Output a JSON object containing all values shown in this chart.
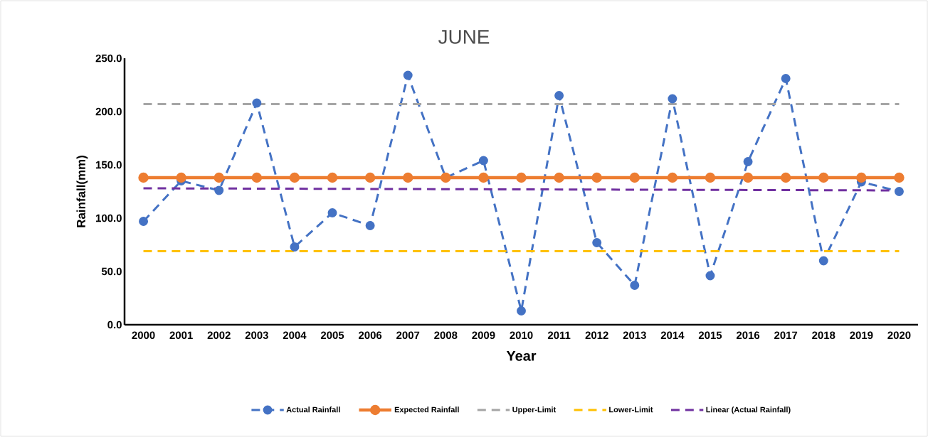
{
  "chart_data": {
    "type": "line",
    "title": "JUNE",
    "xlabel": "Year",
    "ylabel": "Rainfall(mm)",
    "x": [
      2000,
      2001,
      2002,
      2003,
      2004,
      2005,
      2006,
      2007,
      2008,
      2009,
      2010,
      2011,
      2012,
      2013,
      2014,
      2015,
      2016,
      2017,
      2018,
      2019,
      2020
    ],
    "xlim": [
      1999.5,
      2020.5
    ],
    "xticks": [
      2000,
      2001,
      2002,
      2003,
      2004,
      2005,
      2006,
      2007,
      2008,
      2009,
      2010,
      2011,
      2012,
      2013,
      2014,
      2015,
      2016,
      2017,
      2018,
      2019,
      2020
    ],
    "ylim": [
      0,
      250
    ],
    "yticks": [
      {
        "value": 0,
        "label": "0.0"
      },
      {
        "value": 50,
        "label": "50.0"
      },
      {
        "value": 100,
        "label": "100.0"
      },
      {
        "value": 150,
        "label": "150.0"
      },
      {
        "value": 200,
        "label": "200.0"
      },
      {
        "value": 250,
        "label": "250.0"
      }
    ],
    "grid": false,
    "legend": "bottom",
    "series": [
      {
        "name": "Actual Rainfall",
        "color": "#4472c4",
        "marker": "circle",
        "line_style": "dashed",
        "values": [
          97,
          135,
          126,
          208,
          73,
          105,
          93,
          234,
          138,
          154,
          13,
          215,
          77,
          37,
          212,
          46,
          153,
          231,
          60,
          134,
          125
        ]
      },
      {
        "name": "Expected Rainfall",
        "color": "#ed7d31",
        "marker": "circle",
        "line_style": "solid",
        "values": [
          138,
          138,
          138,
          138,
          138,
          138,
          138,
          138,
          138,
          138,
          138,
          138,
          138,
          138,
          138,
          138,
          138,
          138,
          138,
          138,
          138
        ]
      },
      {
        "name": "Upper-Limit",
        "color": "#a5a5a5",
        "marker": "none",
        "line_style": "dashed",
        "values": [
          207,
          207,
          207,
          207,
          207,
          207,
          207,
          207,
          207,
          207,
          207,
          207,
          207,
          207,
          207,
          207,
          207,
          207,
          207,
          207,
          207
        ]
      },
      {
        "name": "Lower-Limit",
        "color": "#ffc000",
        "marker": "none",
        "line_style": "dashed",
        "values": [
          69,
          69,
          69,
          69,
          69,
          69,
          69,
          69,
          69,
          69,
          69,
          69,
          69,
          69,
          69,
          69,
          69,
          69,
          69,
          69,
          69
        ]
      },
      {
        "name": "Linear (Actual Rainfall)",
        "color": "#7030a0",
        "marker": "none",
        "line_style": "dashed",
        "x": [
          2000,
          2020
        ],
        "values": [
          128,
          126
        ]
      }
    ]
  }
}
